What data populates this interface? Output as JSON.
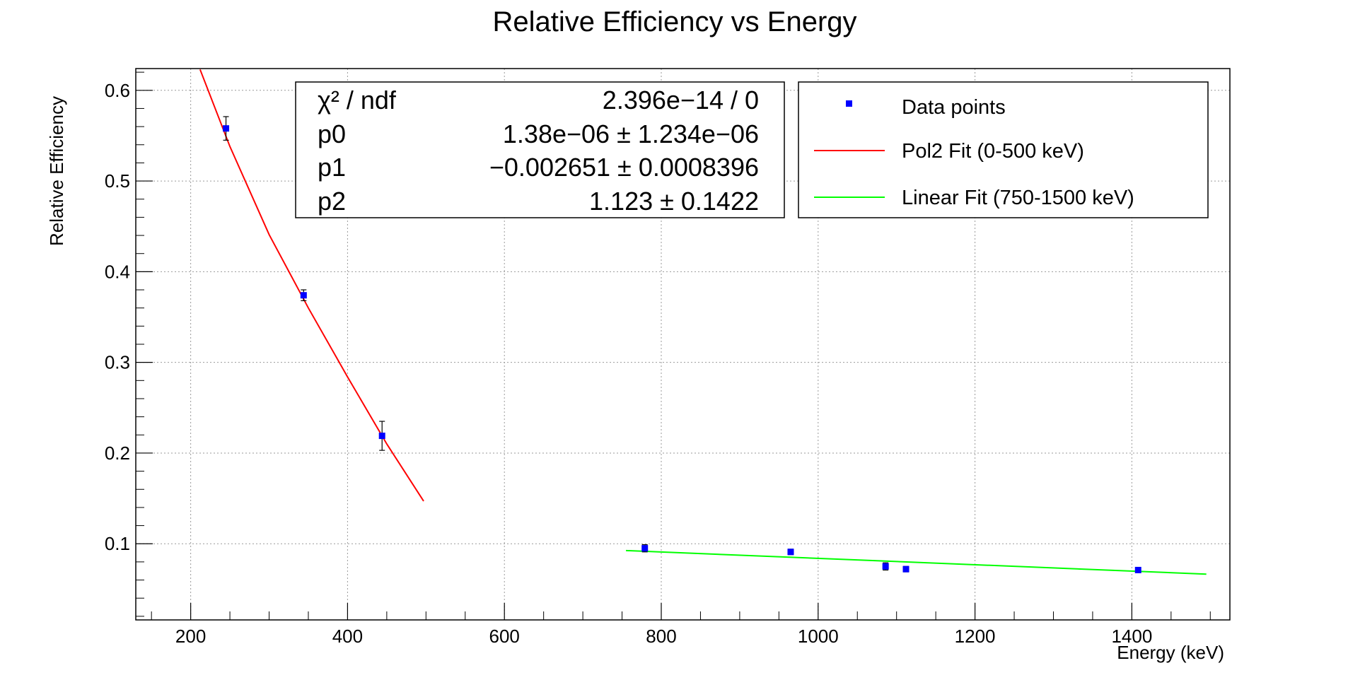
{
  "chart_data": {
    "type": "scatter",
    "title": "Relative Efficiency vs Energy",
    "xlabel": "Energy (keV)",
    "ylabel": "Relative Efficiency",
    "xlim": [
      130,
      1525
    ],
    "ylim": [
      0.016,
      0.624
    ],
    "x_ticks": [
      200,
      400,
      600,
      800,
      1000,
      1200,
      1400
    ],
    "x_tick_labels": [
      "200",
      "400",
      "600",
      "800",
      "1000",
      "1200",
      "1400"
    ],
    "y_ticks": [
      0.1,
      0.2,
      0.3,
      0.4,
      0.5,
      0.6
    ],
    "y_tick_labels": [
      "0.1",
      "0.2",
      "0.3",
      "0.4",
      "0.5",
      "0.6"
    ],
    "grid": true,
    "legend_position": "top-right",
    "points": {
      "name": "Data points",
      "color": "#0000ff",
      "x": [
        245,
        344,
        444,
        779,
        965,
        1086,
        1112,
        1408
      ],
      "y": [
        0.558,
        0.374,
        0.219,
        0.095,
        0.091,
        0.075,
        0.072,
        0.071
      ],
      "yerr": [
        0.013,
        0.006,
        0.016,
        0.004,
        0.003,
        0.004,
        0.003,
        0.002
      ]
    },
    "fits": [
      {
        "name": "Pol2 Fit (0-500 keV)",
        "color": "#ff0000",
        "x": [
          212,
          250,
          300,
          350,
          400,
          450,
          497
        ],
        "y": [
          0.623,
          0.538,
          0.441,
          0.36,
          0.284,
          0.21,
          0.147
        ]
      },
      {
        "name": "Linear Fit (750-1500 keV)",
        "color": "#00ff00",
        "x": [
          755,
          1495
        ],
        "y": [
          0.0925,
          0.0665
        ]
      }
    ],
    "stats_box": {
      "rows": [
        {
          "label": "χ² / ndf",
          "value": "2.396e−14 / 0"
        },
        {
          "label": "p0",
          "value": "1.38e−06 ± 1.234e−06"
        },
        {
          "label": "p1",
          "value": "−0.002651 ± 0.0008396"
        },
        {
          "label": "p2",
          "value": "1.123 ± 0.1422"
        }
      ]
    }
  }
}
